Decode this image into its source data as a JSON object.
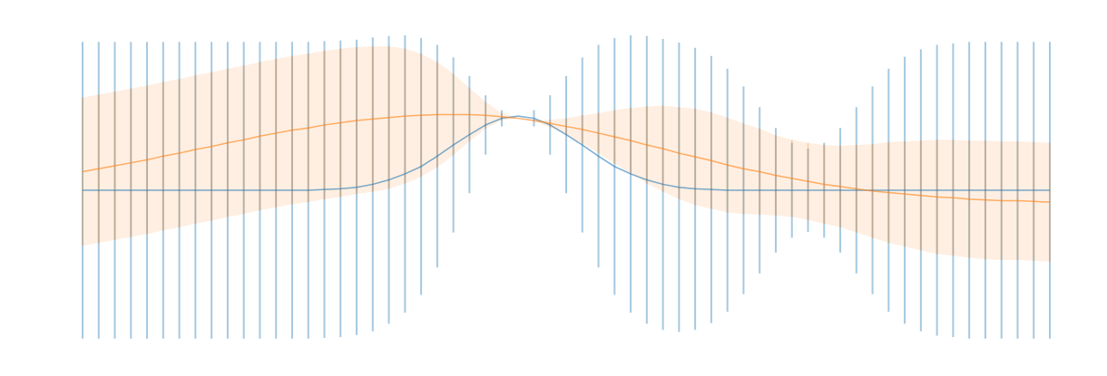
{
  "chart_data": {
    "type": "errorbar",
    "xlim": [
      0,
      60
    ],
    "ylim": [
      -2.32,
      2.32
    ],
    "x": [
      0,
      1,
      2,
      3,
      4,
      5,
      6,
      7,
      8,
      9,
      10,
      11,
      12,
      13,
      14,
      15,
      16,
      17,
      18,
      19,
      20,
      21,
      22,
      23,
      24,
      25,
      26,
      27,
      28,
      29,
      30,
      31,
      32,
      33,
      34,
      35,
      36,
      37,
      38,
      39,
      40,
      41,
      42,
      43,
      44,
      45,
      46,
      47,
      48,
      49,
      50,
      51,
      52,
      53,
      54,
      55,
      56,
      57,
      58,
      59,
      60
    ],
    "series": [
      {
        "color": "#1f77b4",
        "error_style": "bars",
        "values": [
          0,
          0,
          0,
          0,
          0,
          0,
          0,
          0,
          0,
          0,
          0,
          0,
          0,
          0,
          0,
          0.01,
          0.02,
          0.04,
          0.08,
          0.14,
          0.22,
          0.32,
          0.46,
          0.61,
          0.75,
          0.88,
          0.97,
          1,
          0.97,
          0.88,
          0.75,
          0.61,
          0.46,
          0.32,
          0.22,
          0.14,
          0.08,
          0.04,
          0.02,
          0.01,
          0,
          0,
          0,
          0,
          0,
          0,
          0,
          0,
          0,
          0,
          0,
          0,
          0,
          0,
          0,
          0,
          0,
          0,
          0,
          0,
          0
        ],
        "errors": [
          2,
          2,
          2,
          2,
          2,
          2,
          2,
          2,
          2,
          2,
          2,
          2,
          2,
          2,
          2,
          2,
          2,
          1.99,
          1.98,
          1.94,
          1.87,
          1.73,
          1.5,
          1.18,
          0.79,
          0.4,
          0.11,
          0,
          0.11,
          0.4,
          0.79,
          1.18,
          1.5,
          1.73,
          1.87,
          1.94,
          1.96,
          1.95,
          1.9,
          1.8,
          1.64,
          1.4,
          1.12,
          0.84,
          0.64,
          0.56,
          0.64,
          0.84,
          1.12,
          1.4,
          1.64,
          1.8,
          1.9,
          1.96,
          1.98,
          2,
          2,
          2,
          2,
          2,
          2
        ]
      },
      {
        "color": "#ff7f0e",
        "error_style": "band",
        "values": [
          0.25,
          0.29,
          0.33,
          0.37,
          0.41,
          0.46,
          0.5,
          0.55,
          0.59,
          0.64,
          0.68,
          0.73,
          0.77,
          0.81,
          0.84,
          0.88,
          0.91,
          0.94,
          0.96,
          0.98,
          1,
          1.01,
          1.02,
          1.02,
          1.02,
          1.01,
          0.99,
          0.97,
          0.94,
          0.9,
          0.86,
          0.82,
          0.77,
          0.72,
          0.67,
          0.61,
          0.56,
          0.5,
          0.45,
          0.4,
          0.34,
          0.29,
          0.25,
          0.2,
          0.16,
          0.12,
          0.08,
          0.05,
          0.02,
          -0.01,
          -0.03,
          -0.05,
          -0.07,
          -0.09,
          -0.1,
          -0.12,
          -0.13,
          -0.14,
          -0.14,
          -0.15,
          -0.16
        ],
        "errors": [
          1,
          1,
          1,
          1,
          1,
          1,
          1,
          1,
          1,
          1,
          1,
          1,
          1,
          1,
          1,
          1,
          1,
          0.99,
          0.98,
          0.96,
          0.91,
          0.83,
          0.71,
          0.55,
          0.36,
          0.18,
          0.05,
          0,
          0.01,
          0.05,
          0.11,
          0.19,
          0.27,
          0.36,
          0.44,
          0.52,
          0.58,
          0.62,
          0.65,
          0.65,
          0.64,
          0.61,
          0.58,
          0.54,
          0.52,
          0.52,
          0.53,
          0.55,
          0.59,
          0.63,
          0.68,
          0.71,
          0.74,
          0.77,
          0.78,
          0.79,
          0.8,
          0.8,
          0.8,
          0.8,
          0.8
        ]
      }
    ]
  }
}
